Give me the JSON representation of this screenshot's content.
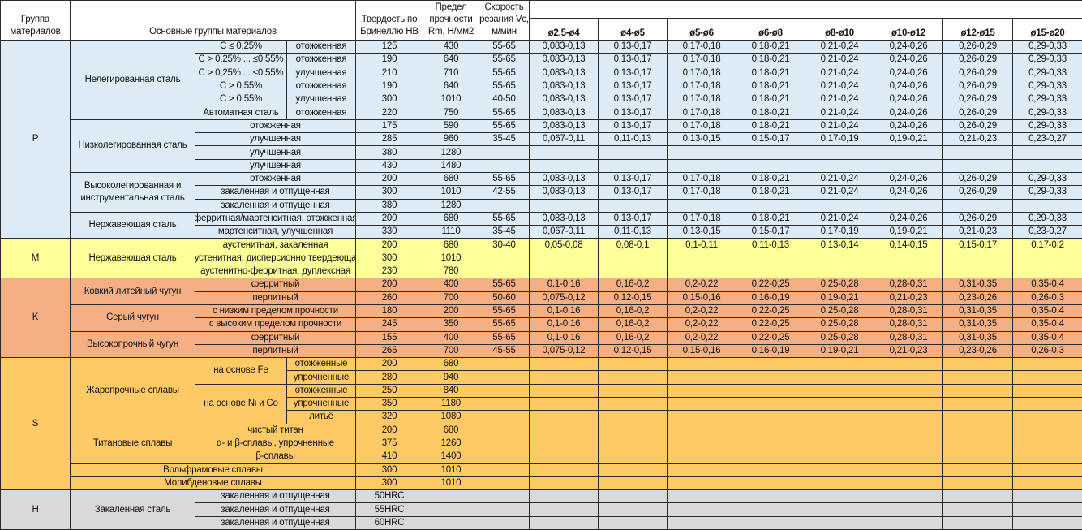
{
  "header": {
    "group": "Группа материалов",
    "main_groups": "Основные группы материалов",
    "hardness": "Твердость по Бринеллю НВ",
    "strength": "Предел прочности Rm, Н/мм2",
    "speed": "Скорость резания Vc, м/мин",
    "diameters": [
      "ø2,5-ø4",
      "ø4-ø5",
      "ø5-ø6",
      "ø6-ø8",
      "ø8-ø10",
      "ø10-ø12",
      "ø12-ø15",
      "ø15-ø20"
    ]
  },
  "groups": [
    {
      "code": "P",
      "color": "#ddebf7",
      "subgroups": [
        {
          "name": "Нелегированная сталь",
          "rows": [
            {
              "condition": "C ≤ 0,25%",
              "state": "отожженная",
              "hb": "125",
              "rm": "430",
              "vc": "55-65",
              "feeds": [
                "0,083-0,13",
                "0,13-0,17",
                "0,17-0,18",
                "0,18-0,21",
                "0,21-0,24",
                "0,24-0,26",
                "0,26-0,29",
                "0,29-0,33"
              ]
            },
            {
              "condition": "C > 0,25% ... ≤0,55%",
              "state": "отожженная",
              "hb": "190",
              "rm": "640",
              "vc": "55-65",
              "feeds": [
                "0,083-0,13",
                "0,13-0,17",
                "0,17-0,18",
                "0,18-0,21",
                "0,21-0,24",
                "0,24-0,26",
                "0,26-0,29",
                "0,29-0,33"
              ]
            },
            {
              "condition": "C > 0,25% ... ≤0,55%",
              "state": "улучшенная",
              "hb": "210",
              "rm": "710",
              "vc": "55-65",
              "feeds": [
                "0,083-0,13",
                "0,13-0,17",
                "0,17-0,18",
                "0,18-0,21",
                "0,21-0,24",
                "0,24-0,26",
                "0,26-0,29",
                "0,29-0,33"
              ]
            },
            {
              "condition": "C > 0,55%",
              "state": "отожженная",
              "hb": "190",
              "rm": "640",
              "vc": "55-65",
              "feeds": [
                "0,083-0,13",
                "0,13-0,17",
                "0,17-0,18",
                "0,18-0,21",
                "0,21-0,24",
                "0,24-0,26",
                "0,26-0,29",
                "0,29-0,33"
              ]
            },
            {
              "condition": "C > 0,55%",
              "state": "улучшенная",
              "hb": "300",
              "rm": "1010",
              "vc": "40-50",
              "feeds": [
                "0,083-0,13",
                "0,13-0,17",
                "0,17-0,18",
                "0,18-0,21",
                "0,21-0,24",
                "0,24-0,26",
                "0,26-0,29",
                "0,29-0,33"
              ]
            },
            {
              "condition": "Автоматная сталь",
              "state": "отожженная",
              "hb": "220",
              "rm": "750",
              "vc": "55-65",
              "feeds": [
                "0,083-0,13",
                "0,13-0,17",
                "0,17-0,18",
                "0,18-0,21",
                "0,21-0,24",
                "0,24-0,26",
                "0,26-0,29",
                "0,29-0,33"
              ]
            }
          ]
        },
        {
          "name": "Низколегированная сталь",
          "rows": [
            {
              "label": "отожженная",
              "hb": "175",
              "rm": "590",
              "vc": "55-65",
              "feeds": [
                "0,083-0,13",
                "0,13-0,17",
                "0,17-0,18",
                "0,18-0,21",
                "0,21-0,24",
                "0,24-0,26",
                "0,26-0,29",
                "0,29-0,33"
              ]
            },
            {
              "label": "улучшенная",
              "hb": "285",
              "rm": "960",
              "vc": "35-45",
              "feeds": [
                "0,067-0,11",
                "0,11-0,13",
                "0,13-0,15",
                "0,15-0,17",
                "0,17-0,19",
                "0,19-0,21",
                "0,21-0,23",
                "0,23-0,27"
              ]
            },
            {
              "label": "улучшенная",
              "hb": "380",
              "rm": "1280"
            },
            {
              "label": "улучшенная",
              "hb": "430",
              "rm": "1480"
            }
          ]
        },
        {
          "name": "Высоколегированная и инструментальная сталь",
          "rows": [
            {
              "label": "отожженная",
              "hb": "200",
              "rm": "680",
              "vc": "55-65",
              "feeds": [
                "0,083-0,13",
                "0,13-0,17",
                "0,17-0,18",
                "0,18-0,21",
                "0,21-0,24",
                "0,24-0,26",
                "0,26-0,29",
                "0,29-0,33"
              ]
            },
            {
              "label": "закаленная и отпущенная",
              "hb": "300",
              "rm": "1010",
              "vc": "42-55",
              "feeds": [
                "0,083-0,13",
                "0,13-0,17",
                "0,17-0,18",
                "0,18-0,21",
                "0,21-0,24",
                "0,24-0,26",
                "0,26-0,29",
                "0,29-0,33"
              ]
            },
            {
              "label": "закаленная и отпущенная",
              "hb": "380",
              "rm": "1280"
            }
          ]
        },
        {
          "name": "Нержавеющая сталь",
          "rows": [
            {
              "label": "ферритная/мартенситная, отожженная",
              "hb": "200",
              "rm": "680",
              "vc": "55-65",
              "feeds": [
                "0,083-0,13",
                "0,13-0,17",
                "0,17-0,18",
                "0,18-0,21",
                "0,21-0,24",
                "0,24-0,26",
                "0,26-0,29",
                "0,29-0,33"
              ]
            },
            {
              "label": "мартенситная, улучшенная",
              "hb": "330",
              "rm": "1110",
              "vc": "35-45",
              "feeds": [
                "0,067-0,11",
                "0,11-0,13",
                "0,13-0,15",
                "0,15-0,17",
                "0,17-0,19",
                "0,19-0,21",
                "0,21-0,23",
                "0,23-0,27"
              ]
            }
          ]
        }
      ]
    },
    {
      "code": "M",
      "color": "#ffff99",
      "subgroups": [
        {
          "name": "Нержавеющая сталь",
          "rows": [
            {
              "label": "аустенитная, закаленная",
              "hb": "200",
              "rm": "680",
              "vc": "30-40",
              "feeds": [
                "0,05-0,08",
                "0,08-0,1",
                "0,1-0,11",
                "0,11-0,13",
                "0,13-0,14",
                "0,14-0,15",
                "0,15-0,17",
                "0,17-0,2"
              ]
            },
            {
              "label": "аустенитная, дисперсионно твердеющая",
              "hb": "300",
              "rm": "1010"
            },
            {
              "label": "аустенитно-ферритная, дуплексная",
              "hb": "230",
              "rm": "780"
            }
          ]
        }
      ]
    },
    {
      "code": "K",
      "color": "#f4b084",
      "subgroups": [
        {
          "name": "Ковкий литейный чугун",
          "rows": [
            {
              "label": "ферритный",
              "hb": "200",
              "rm": "400",
              "vc": "55-65",
              "feeds": [
                "0,1-0,16",
                "0,16-0,2",
                "0,2-0,22",
                "0,22-0,25",
                "0,25-0,28",
                "0,28-0,31",
                "0,31-0,35",
                "0,35-0,4"
              ]
            },
            {
              "label": "перлитный",
              "hb": "260",
              "rm": "700",
              "vc": "50-60",
              "feeds": [
                "0,075-0,12",
                "0,12-0,15",
                "0,15-0,16",
                "0,16-0,19",
                "0,19-0,21",
                "0,21-0,23",
                "0,23-0,26",
                "0,26-0,3"
              ]
            }
          ]
        },
        {
          "name": "Серый чугун",
          "rows": [
            {
              "label": "с низким пределом прочности",
              "hb": "180",
              "rm": "200",
              "vc": "55-65",
              "feeds": [
                "0,1-0,16",
                "0,16-0,2",
                "0,2-0,22",
                "0,22-0,25",
                "0,25-0,28",
                "0,28-0,31",
                "0,31-0,35",
                "0,35-0,4"
              ]
            },
            {
              "label": "с высоким пределом прочности",
              "hb": "245",
              "rm": "350",
              "vc": "55-65",
              "feeds": [
                "0,1-0,16",
                "0,16-0,2",
                "0,2-0,22",
                "0,22-0,25",
                "0,25-0,28",
                "0,28-0,31",
                "0,31-0,35",
                "0,35-0,4"
              ]
            }
          ]
        },
        {
          "name": "Высокопрочный чугун",
          "rows": [
            {
              "label": "ферритный",
              "hb": "155",
              "rm": "400",
              "vc": "55-65",
              "feeds": [
                "0,1-0,16",
                "0,16-0,2",
                "0,2-0,22",
                "0,22-0,25",
                "0,25-0,28",
                "0,28-0,31",
                "0,31-0,35",
                "0,35-0,4"
              ]
            },
            {
              "label": "перлитный",
              "hb": "265",
              "rm": "700",
              "vc": "45-55",
              "feeds": [
                "0,075-0,12",
                "0,12-0,15",
                "0,15-0,16",
                "0,16-0,19",
                "0,19-0,21",
                "0,21-0,23",
                "0,23-0,26",
                "0,26-0,3"
              ]
            }
          ]
        }
      ]
    },
    {
      "code": "S",
      "color": "#ffc966",
      "subgroups": [
        {
          "name": "Жаропрочные сплавы",
          "parts": [
            {
              "name": "на основе Fe",
              "rows": [
                {
                  "state": "отожженные",
                  "hb": "200",
                  "rm": "680"
                },
                {
                  "state": "упрочненные",
                  "hb": "280",
                  "rm": "940"
                }
              ]
            },
            {
              "name": "на основе Ni и Co",
              "rows": [
                {
                  "state": "отожженные",
                  "hb": "250",
                  "rm": "840"
                },
                {
                  "state": "упрочненные",
                  "hb": "350",
                  "rm": "1180"
                },
                {
                  "state": "литьё",
                  "hb": "320",
                  "rm": "1080"
                }
              ]
            }
          ]
        },
        {
          "name": "Титановые сплавы",
          "rows": [
            {
              "label": "чистый титан",
              "hb": "200",
              "rm": "680"
            },
            {
              "label": "α- и β-сплавы, упрочненные",
              "hb": "375",
              "rm": "1260"
            },
            {
              "label": "β-сплавы",
              "hb": "410",
              "rm": "1400"
            }
          ]
        },
        {
          "name": "Вольфрамовые сплавы",
          "full": true,
          "rows": [
            {
              "hb": "300",
              "rm": "1010"
            }
          ]
        },
        {
          "name": "Молибденовые сплавы",
          "full": true,
          "rows": [
            {
              "hb": "300",
              "rm": "1010"
            }
          ]
        }
      ]
    },
    {
      "code": "H",
      "color": "#d9d9d9",
      "subgroups": [
        {
          "name": "Закаленная сталь",
          "rows": [
            {
              "label": "закаленная и отпущенная",
              "hb": "50HRC"
            },
            {
              "label": "закаленная и отпущенная",
              "hb": "55HRC"
            },
            {
              "label": "закаленная и отпущенная",
              "hb": "60HRC"
            }
          ]
        }
      ]
    }
  ]
}
